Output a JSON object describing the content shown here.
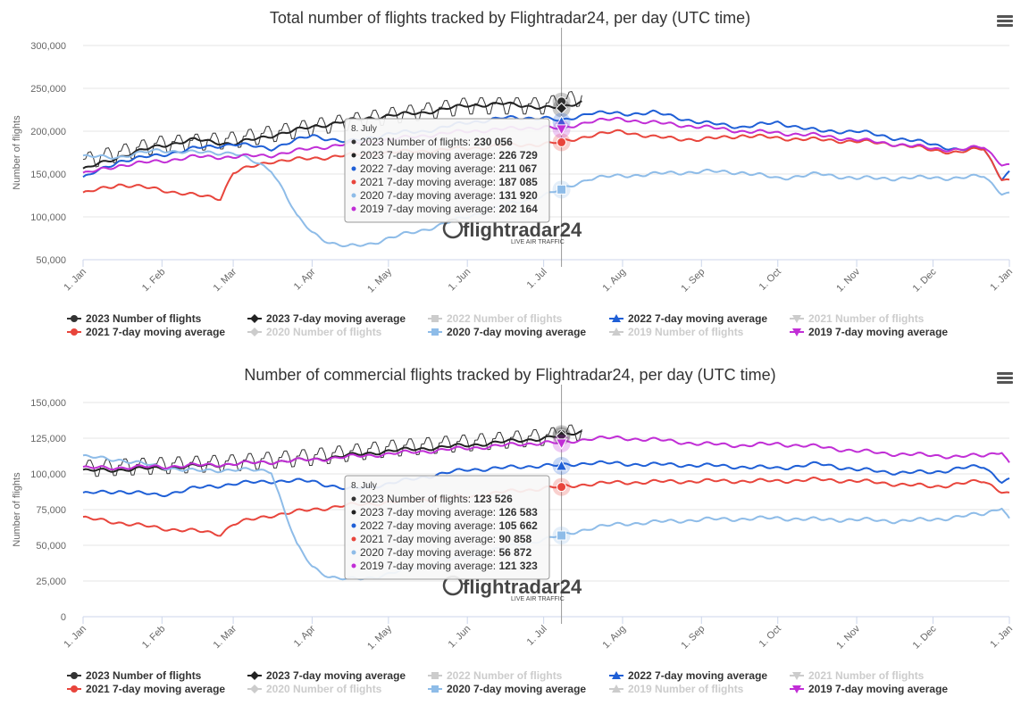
{
  "x_axis_ticks": [
    "1. Jan",
    "1. Feb",
    "1. Mar",
    "1. Apr",
    "1. May",
    "1. Jun",
    "1. Jul",
    "1. Aug",
    "1. Sep",
    "1. Oct",
    "1. Nov",
    "1. Dec",
    "1. Jan"
  ],
  "legend": [
    {
      "label": "2023 Number of flights",
      "color": "#333333",
      "marker": "circle",
      "active": true
    },
    {
      "label": "2023 7-day moving average",
      "color": "#222222",
      "marker": "diamond",
      "active": true
    },
    {
      "label": "2022 Number of flights",
      "color": "#cccccc",
      "marker": "square",
      "active": false
    },
    {
      "label": "2022 7-day moving average",
      "color": "#1f5fd6",
      "marker": "triangle",
      "active": true
    },
    {
      "label": "2021 Number of flights",
      "color": "#cccccc",
      "marker": "triangle-down",
      "active": false
    },
    {
      "label": "2021 7-day moving average",
      "color": "#e8453c",
      "marker": "circle",
      "active": true
    },
    {
      "label": "2020 Number of flights",
      "color": "#cccccc",
      "marker": "diamond",
      "active": false
    },
    {
      "label": "2020 7-day moving average",
      "color": "#8ebce8",
      "marker": "square",
      "active": true
    },
    {
      "label": "2019 Number of flights",
      "color": "#cccccc",
      "marker": "triangle",
      "active": false
    },
    {
      "label": "2019 7-day moving average",
      "color": "#c12ed6",
      "marker": "triangle-down",
      "active": true
    }
  ],
  "watermark": {
    "brand": "flightradar24",
    "tagline": "LIVE AIR TRAFFIC"
  },
  "chart_data": [
    {
      "type": "line",
      "title": "Total number of flights tracked by Flightradar24, per day (UTC time)",
      "ylabel": "Number of flights",
      "ylim": [
        50000,
        300000
      ],
      "yticks": [
        "50,000",
        "100,000",
        "150,000",
        "200,000",
        "250,000",
        "300,000"
      ],
      "ytick_values": [
        50000,
        100000,
        150000,
        200000,
        250000,
        300000
      ],
      "x_unit": "day of year",
      "crosshair_x": 189,
      "tooltip": {
        "date": "8. July",
        "rows": [
          {
            "label": "2023 Number of flights: ",
            "value": "230 056",
            "color": "#333333"
          },
          {
            "label": "2023 7-day moving average: ",
            "value": "226 729",
            "color": "#222222"
          },
          {
            "label": "2022 7-day moving average: ",
            "value": "211 067",
            "color": "#1f5fd6"
          },
          {
            "label": "2021 7-day moving average: ",
            "value": "187 085",
            "color": "#e8453c"
          },
          {
            "label": "2020 7-day moving average: ",
            "value": "131 920",
            "color": "#8ebce8"
          },
          {
            "label": "2019 7-day moving average: ",
            "value": "202 164",
            "color": "#c12ed6"
          }
        ]
      },
      "series": [
        {
          "name": "2023 Number of flights",
          "color": "#333333",
          "kind": "daily",
          "amp": 10000,
          "end": 197,
          "x": [
            1,
            31,
            60,
            91,
            121,
            152,
            182,
            197
          ],
          "y": [
            165000,
            185000,
            190000,
            205000,
            218000,
            230000,
            230000,
            240000
          ]
        },
        {
          "name": "2023 7-day moving average",
          "color": "#222222",
          "end": 197,
          "x": [
            1,
            15,
            31,
            45,
            60,
            75,
            91,
            105,
            121,
            135,
            152,
            165,
            182,
            189,
            197
          ],
          "y": [
            155000,
            170000,
            183000,
            190000,
            185000,
            195000,
            205000,
            212000,
            218000,
            222000,
            230000,
            232000,
            228000,
            226729,
            235000
          ]
        },
        {
          "name": "2022 7-day moving average",
          "color": "#1f5fd6",
          "x": [
            1,
            15,
            31,
            45,
            60,
            75,
            91,
            105,
            121,
            135,
            152,
            165,
            182,
            189,
            200,
            213,
            225,
            244,
            260,
            274,
            290,
            305,
            320,
            335,
            345,
            355,
            362,
            365
          ],
          "y": [
            145000,
            165000,
            172000,
            180000,
            185000,
            180000,
            195000,
            187000,
            197000,
            200000,
            210000,
            215000,
            216000,
            211067,
            222000,
            220000,
            222000,
            210000,
            205000,
            210000,
            200000,
            200000,
            192000,
            185000,
            178000,
            180000,
            145000,
            152000
          ]
        },
        {
          "name": "2021 7-day moving average",
          "color": "#e8453c",
          "x": [
            1,
            15,
            31,
            45,
            55,
            60,
            75,
            91,
            105,
            121,
            135,
            152,
            165,
            182,
            189,
            200,
            213,
            225,
            244,
            260,
            274,
            290,
            305,
            320,
            335,
            345,
            355,
            362,
            365
          ],
          "y": [
            127000,
            138000,
            132000,
            125000,
            122000,
            152000,
            165000,
            168000,
            172000,
            175000,
            177000,
            180000,
            183000,
            185000,
            187085,
            195000,
            200000,
            193000,
            190000,
            195000,
            192000,
            190000,
            188000,
            185000,
            178000,
            175000,
            180000,
            145000,
            142000
          ]
        },
        {
          "name": "2020 7-day moving average",
          "color": "#8ebce8",
          "x": [
            1,
            15,
            31,
            45,
            60,
            75,
            80,
            85,
            91,
            98,
            105,
            113,
            121,
            135,
            152,
            165,
            182,
            189,
            200,
            213,
            225,
            244,
            260,
            274,
            290,
            305,
            320,
            335,
            345,
            355,
            362,
            365
          ],
          "y": [
            170000,
            170000,
            178000,
            175000,
            175000,
            155000,
            130000,
            100000,
            82000,
            70000,
            65000,
            68000,
            75000,
            85000,
            100000,
            112000,
            125000,
            131920,
            145000,
            148000,
            150000,
            153000,
            152000,
            145000,
            150000,
            145000,
            145000,
            146000,
            145000,
            148000,
            128000,
            127000
          ]
        },
        {
          "name": "2019 7-day moving average",
          "color": "#c12ed6",
          "x": [
            1,
            15,
            31,
            45,
            60,
            75,
            91,
            105,
            121,
            135,
            152,
            165,
            182,
            189,
            200,
            213,
            225,
            244,
            260,
            274,
            290,
            305,
            320,
            335,
            345,
            355,
            362,
            365
          ],
          "y": [
            150000,
            160000,
            165000,
            170000,
            170000,
            172000,
            180000,
            185000,
            190000,
            195000,
            200000,
            202000,
            205000,
            202164,
            212000,
            214000,
            210000,
            205000,
            200000,
            198000,
            195000,
            190000,
            185000,
            180000,
            178000,
            182000,
            162000,
            160000
          ]
        }
      ]
    },
    {
      "type": "line",
      "title": "Number of commercial flights tracked by Flightradar24, per day (UTC time)",
      "ylabel": "Number of flights",
      "ylim": [
        0,
        150000
      ],
      "yticks": [
        "0",
        "25,000",
        "50,000",
        "75,000",
        "100,000",
        "125,000",
        "150,000"
      ],
      "ytick_values": [
        0,
        25000,
        50000,
        75000,
        100000,
        125000,
        150000
      ],
      "x_unit": "day of year",
      "crosshair_x": 189,
      "tooltip": {
        "date": "8. July",
        "rows": [
          {
            "label": "2023 Number of flights: ",
            "value": "123 526",
            "color": "#333333"
          },
          {
            "label": "2023 7-day moving average: ",
            "value": "126 583",
            "color": "#222222"
          },
          {
            "label": "2022 7-day moving average: ",
            "value": "105 662",
            "color": "#1f5fd6"
          },
          {
            "label": "2021 7-day moving average: ",
            "value": "90 858",
            "color": "#e8453c"
          },
          {
            "label": "2020 7-day moving average: ",
            "value": "56 872",
            "color": "#8ebce8"
          },
          {
            "label": "2019 7-day moving average: ",
            "value": "121 323",
            "color": "#c12ed6"
          }
        ]
      },
      "series": [
        {
          "name": "2023 Number of flights",
          "color": "#333333",
          "kind": "daily",
          "amp": 6000,
          "end": 197,
          "x": [
            1,
            31,
            60,
            91,
            121,
            152,
            182,
            197
          ],
          "y": [
            104000,
            106000,
            108000,
            112000,
            118000,
            122000,
            126000,
            130000
          ]
        },
        {
          "name": "2023 7-day moving average",
          "color": "#222222",
          "end": 197,
          "x": [
            1,
            31,
            60,
            91,
            121,
            152,
            182,
            189,
            197
          ],
          "y": [
            102000,
            104000,
            107000,
            110000,
            116000,
            120000,
            125000,
            126583,
            130000
          ]
        },
        {
          "name": "2022 7-day moving average",
          "color": "#1f5fd6",
          "x": [
            1,
            15,
            31,
            45,
            60,
            75,
            91,
            105,
            121,
            135,
            152,
            165,
            182,
            189,
            200,
            213,
            244,
            274,
            290,
            305,
            320,
            335,
            345,
            355,
            362,
            365
          ],
          "y": [
            86000,
            88000,
            85000,
            90000,
            93000,
            95000,
            95000,
            89000,
            93000,
            98000,
            103000,
            104000,
            106000,
            105662,
            108000,
            107000,
            106000,
            104000,
            107000,
            103000,
            101000,
            101000,
            104000,
            105000,
            95000,
            96000
          ]
        },
        {
          "name": "2021 7-day moving average",
          "color": "#e8453c",
          "x": [
            1,
            15,
            31,
            45,
            55,
            60,
            75,
            91,
            105,
            121,
            135,
            152,
            165,
            182,
            189,
            200,
            213,
            244,
            274,
            290,
            305,
            320,
            335,
            345,
            355,
            362,
            365
          ],
          "y": [
            69000,
            66000,
            62000,
            60000,
            58000,
            65000,
            71000,
            75000,
            78000,
            80000,
            82000,
            84000,
            87000,
            90000,
            90858,
            93000,
            94000,
            95000,
            95000,
            96000,
            95000,
            93000,
            91000,
            93000,
            95000,
            88000,
            86000
          ]
        },
        {
          "name": "2020 7-day moving average",
          "color": "#8ebce8",
          "x": [
            1,
            15,
            31,
            45,
            60,
            75,
            80,
            85,
            91,
            98,
            105,
            113,
            121,
            135,
            152,
            165,
            182,
            189,
            200,
            213,
            244,
            274,
            290,
            305,
            320,
            335,
            345,
            355,
            362,
            365
          ],
          "y": [
            112000,
            110000,
            105000,
            102000,
            103000,
            102000,
            75000,
            50000,
            35000,
            28000,
            26000,
            27000,
            30000,
            36000,
            42000,
            48000,
            54000,
            56872,
            62000,
            65000,
            68000,
            69000,
            68000,
            68000,
            67000,
            68000,
            70000,
            72000,
            77000,
            68000
          ]
        },
        {
          "name": "2019 7-day moving average",
          "color": "#c12ed6",
          "x": [
            1,
            31,
            60,
            91,
            121,
            152,
            182,
            189,
            200,
            213,
            225,
            244,
            260,
            274,
            290,
            305,
            320,
            335,
            345,
            355,
            362,
            365
          ],
          "y": [
            104000,
            105000,
            107000,
            110000,
            114000,
            118000,
            122000,
            121323,
            125000,
            125000,
            124000,
            121000,
            120000,
            121000,
            119000,
            116000,
            114000,
            113000,
            112000,
            113000,
            116000,
            107000
          ]
        }
      ]
    }
  ]
}
